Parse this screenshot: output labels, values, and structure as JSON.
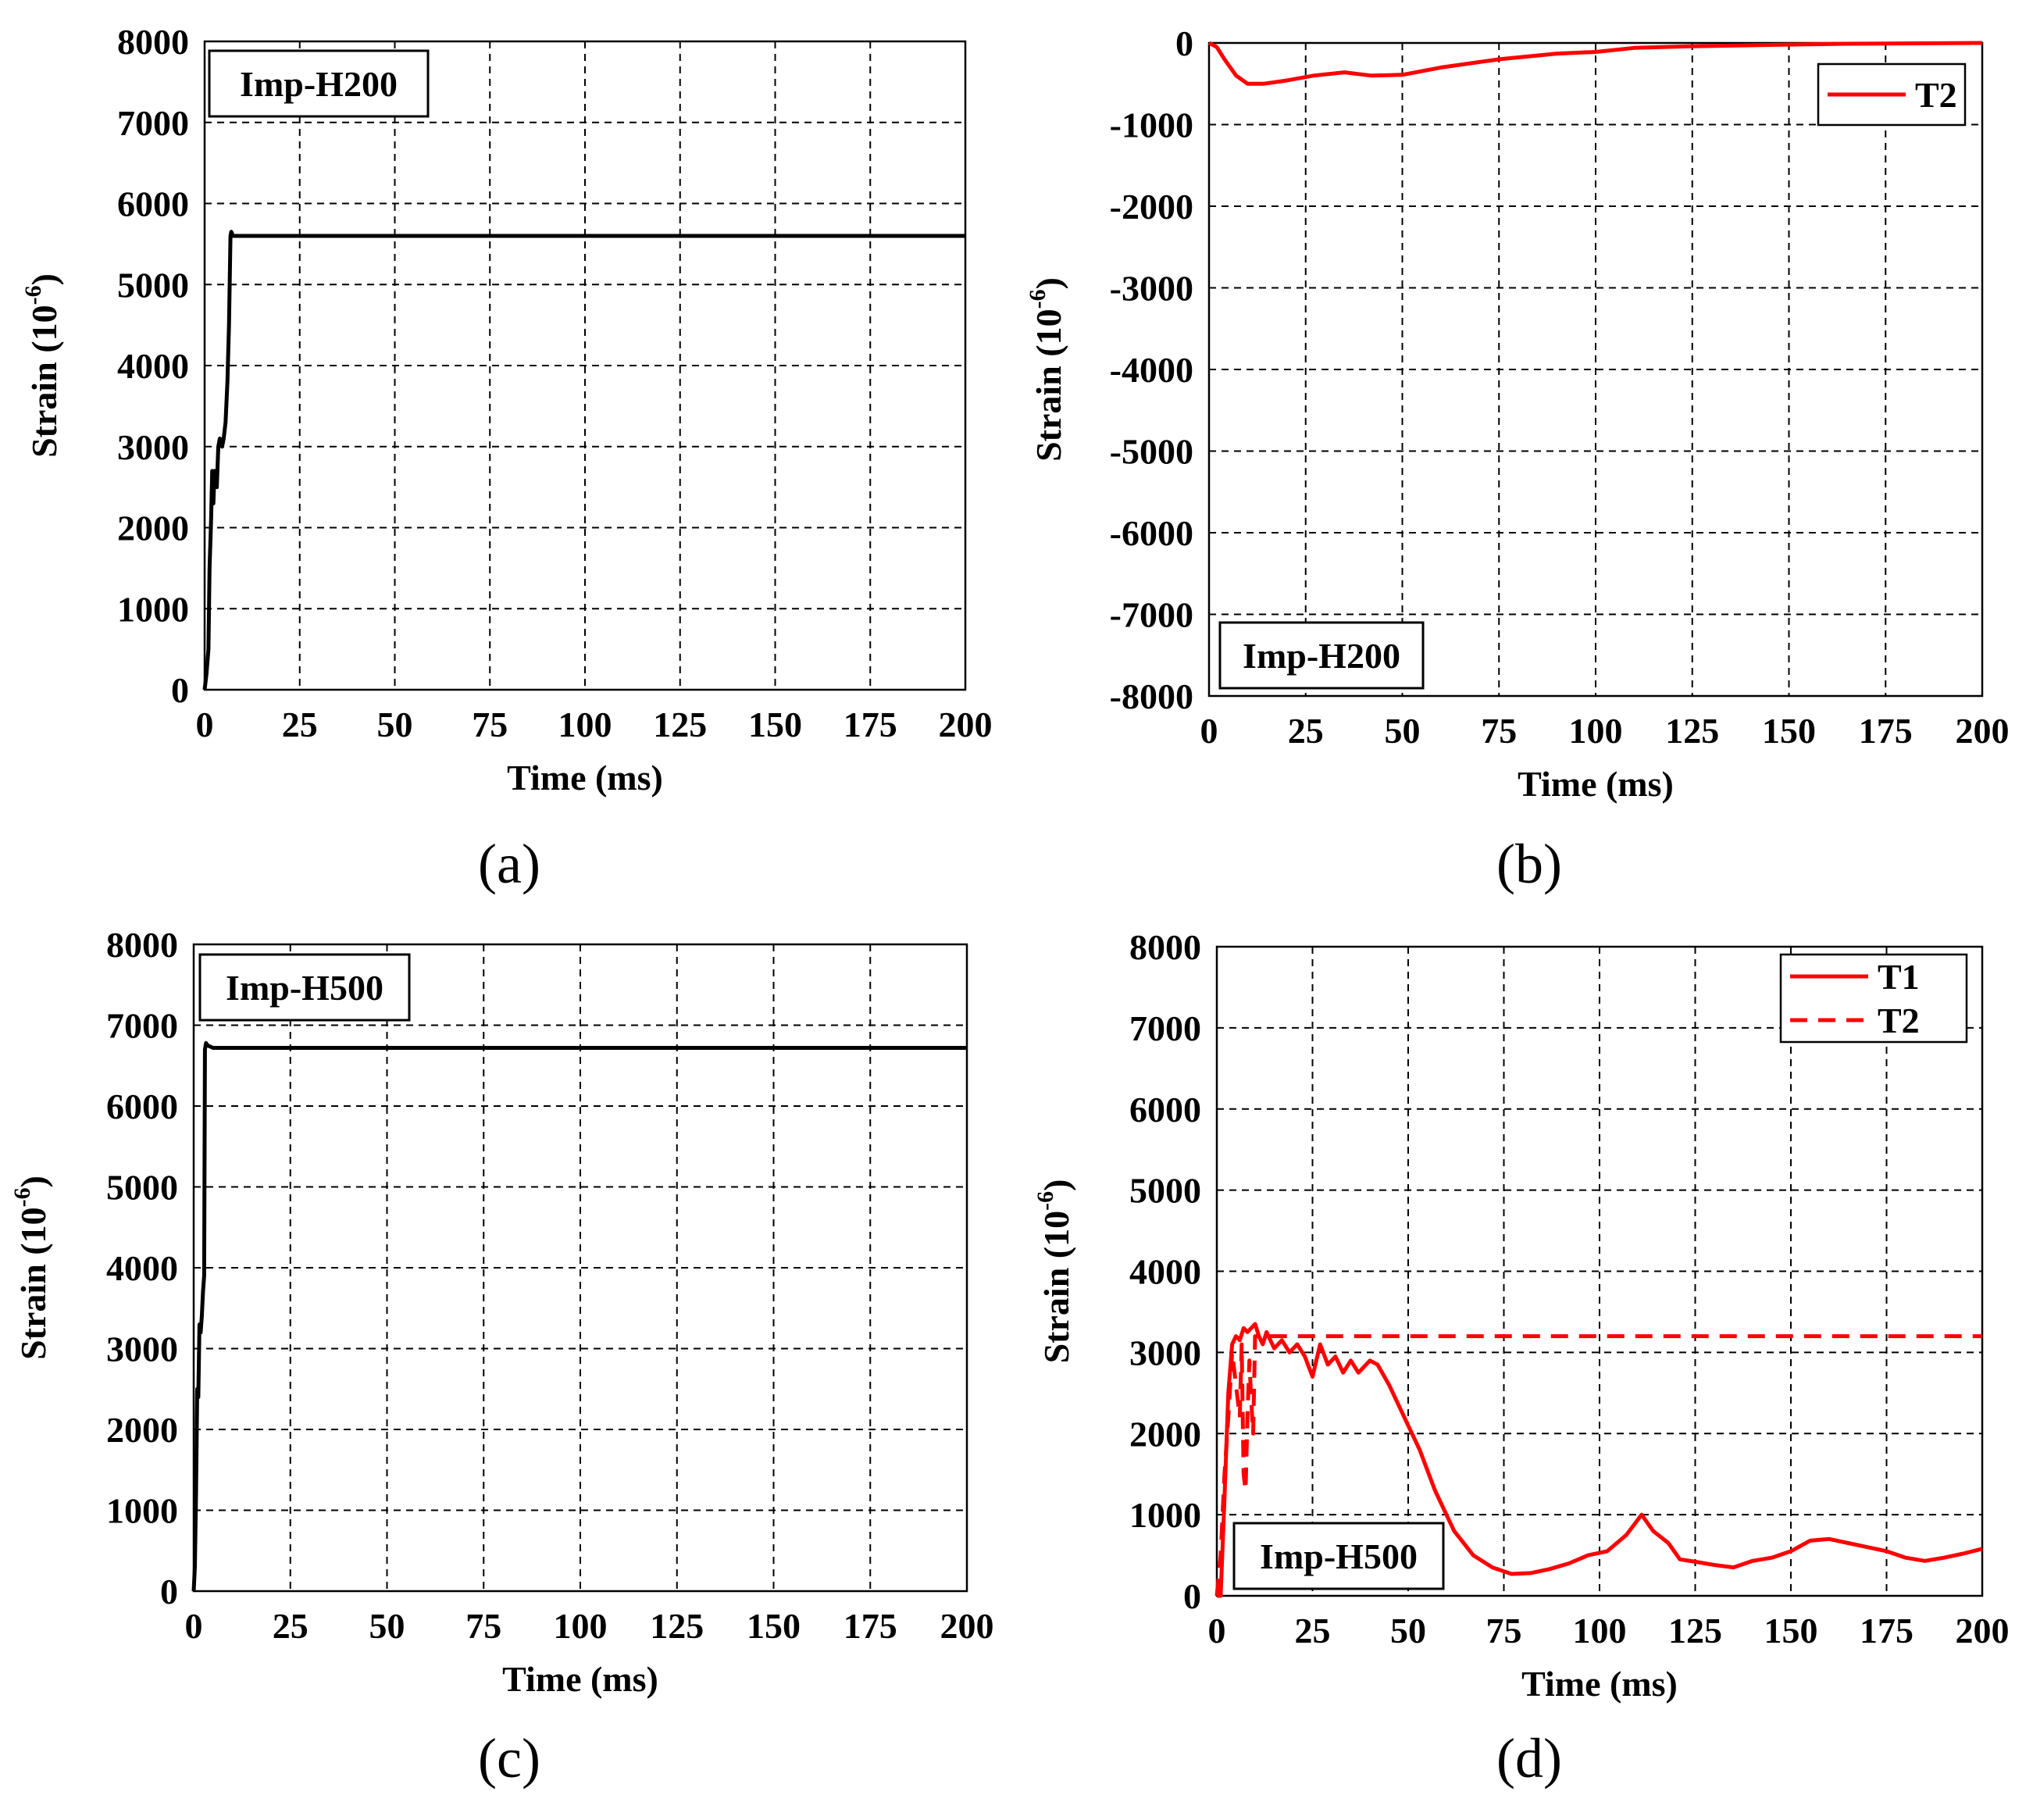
{
  "figure": {
    "chart_data": [
      {
        "id": "a",
        "type": "line",
        "panel_label": "(a)",
        "annotation": "Imp-H200",
        "xlabel": "Time (ms)",
        "ylabel_main": "Strain (10",
        "ylabel_exp": "-6",
        "ylabel_close": ")",
        "xlim": [
          0,
          200
        ],
        "ylim": [
          0,
          8000
        ],
        "xticks": [
          0,
          25,
          50,
          75,
          100,
          125,
          150,
          175,
          200
        ],
        "yticks": [
          0,
          1000,
          2000,
          3000,
          4000,
          5000,
          6000,
          7000,
          8000
        ],
        "legend": null,
        "series": [
          {
            "name": "",
            "color": "#000000",
            "dash": "solid",
            "points": [
              [
                0,
                0
              ],
              [
                0.5,
                200
              ],
              [
                1,
                500
              ],
              [
                1.3,
                1500
              ],
              [
                1.7,
                2100
              ],
              [
                2,
                2700
              ],
              [
                2.3,
                2300
              ],
              [
                2.6,
                2700
              ],
              [
                3.2,
                2500
              ],
              [
                3.6,
                3000
              ],
              [
                4,
                3100
              ],
              [
                4.6,
                3000
              ],
              [
                5,
                3100
              ],
              [
                5.5,
                3300
              ],
              [
                6,
                3800
              ],
              [
                6.4,
                4500
              ],
              [
                6.8,
                5600
              ],
              [
                7,
                5650
              ],
              [
                7.5,
                5600
              ],
              [
                200,
                5600
              ]
            ]
          }
        ]
      },
      {
        "id": "b",
        "type": "line",
        "panel_label": "(b)",
        "annotation": "Imp-H200",
        "xlabel": "Time (ms)",
        "ylabel_main": "Strain (10",
        "ylabel_exp": "-6",
        "ylabel_close": ")",
        "xlim": [
          0,
          200
        ],
        "ylim": [
          -8000,
          0
        ],
        "xticks": [
          0,
          25,
          50,
          75,
          100,
          125,
          150,
          175,
          200
        ],
        "yticks": [
          -8000,
          -7000,
          -6000,
          -5000,
          -4000,
          -3000,
          -2000,
          -1000,
          0
        ],
        "legend": {
          "position": "top-right"
        },
        "series": [
          {
            "name": "T2",
            "color": "#ff0000",
            "dash": "solid",
            "points": [
              [
                0,
                0
              ],
              [
                2,
                -50
              ],
              [
                4,
                -200
              ],
              [
                7,
                -400
              ],
              [
                10,
                -500
              ],
              [
                14,
                -500
              ],
              [
                20,
                -460
              ],
              [
                27,
                -400
              ],
              [
                35,
                -360
              ],
              [
                42,
                -400
              ],
              [
                50,
                -390
              ],
              [
                60,
                -300
              ],
              [
                75,
                -200
              ],
              [
                90,
                -130
              ],
              [
                100,
                -110
              ],
              [
                110,
                -60
              ],
              [
                125,
                -40
              ],
              [
                150,
                -20
              ],
              [
                165,
                -10
              ],
              [
                200,
                0
              ]
            ]
          }
        ]
      },
      {
        "id": "c",
        "type": "line",
        "panel_label": "(c)",
        "annotation": "Imp-H500",
        "xlabel": "Time (ms)",
        "ylabel_main": "Strain (10",
        "ylabel_exp": "-6",
        "ylabel_close": ")",
        "xlim": [
          0,
          200
        ],
        "ylim": [
          0,
          8000
        ],
        "xticks": [
          0,
          25,
          50,
          75,
          100,
          125,
          150,
          175,
          200
        ],
        "yticks": [
          0,
          1000,
          2000,
          3000,
          4000,
          5000,
          6000,
          7000,
          8000
        ],
        "legend": null,
        "series": [
          {
            "name": "",
            "color": "#000000",
            "dash": "solid",
            "points": [
              [
                0,
                0
              ],
              [
                0.3,
                300
              ],
              [
                0.6,
                1200
              ],
              [
                0.9,
                2500
              ],
              [
                1.2,
                2400
              ],
              [
                1.5,
                3300
              ],
              [
                1.8,
                3200
              ],
              [
                2.1,
                3400
              ],
              [
                2.4,
                3700
              ],
              [
                2.7,
                3900
              ],
              [
                2.9,
                6700
              ],
              [
                3.2,
                6780
              ],
              [
                3.6,
                6750
              ],
              [
                5,
                6720
              ],
              [
                200,
                6720
              ]
            ]
          }
        ]
      },
      {
        "id": "d",
        "type": "line",
        "panel_label": "(d)",
        "annotation": "Imp-H500",
        "xlabel": "Time (ms)",
        "ylabel_main": "Strain (10",
        "ylabel_exp": "-6",
        "ylabel_close": ")",
        "xlim": [
          0,
          200
        ],
        "ylim": [
          0,
          8000
        ],
        "xticks": [
          0,
          25,
          50,
          75,
          100,
          125,
          150,
          175,
          200
        ],
        "yticks": [
          0,
          1000,
          2000,
          3000,
          4000,
          5000,
          6000,
          7000,
          8000
        ],
        "legend": {
          "position": "top-right"
        },
        "series": [
          {
            "name": "T1",
            "color": "#ff0000",
            "dash": "solid",
            "points": [
              [
                0,
                0
              ],
              [
                1,
                0
              ],
              [
                2,
                1200
              ],
              [
                3,
                2500
              ],
              [
                4,
                3100
              ],
              [
                5,
                3200
              ],
              [
                6,
                3150
              ],
              [
                7,
                3300
              ],
              [
                8,
                3250
              ],
              [
                9,
                3300
              ],
              [
                10,
                3350
              ],
              [
                11,
                3200
              ],
              [
                12,
                3100
              ],
              [
                13,
                3250
              ],
              [
                15,
                3050
              ],
              [
                17,
                3150
              ],
              [
                19,
                3000
              ],
              [
                21,
                3100
              ],
              [
                23,
                2950
              ],
              [
                25,
                2700
              ],
              [
                27,
                3100
              ],
              [
                29,
                2850
              ],
              [
                31,
                2950
              ],
              [
                33,
                2750
              ],
              [
                35,
                2900
              ],
              [
                37,
                2750
              ],
              [
                40,
                2900
              ],
              [
                42,
                2850
              ],
              [
                45,
                2600
              ],
              [
                50,
                2100
              ],
              [
                53,
                1800
              ],
              [
                57,
                1300
              ],
              [
                62,
                800
              ],
              [
                67,
                500
              ],
              [
                72,
                350
              ],
              [
                77,
                270
              ],
              [
                82,
                280
              ],
              [
                87,
                330
              ],
              [
                92,
                400
              ],
              [
                97,
                500
              ],
              [
                102,
                550
              ],
              [
                107,
                750
              ],
              [
                111,
                1000
              ],
              [
                114,
                800
              ],
              [
                118,
                650
              ],
              [
                121,
                450
              ],
              [
                125,
                420
              ],
              [
                130,
                380
              ],
              [
                135,
                350
              ],
              [
                140,
                430
              ],
              [
                145,
                470
              ],
              [
                150,
                550
              ],
              [
                155,
                680
              ],
              [
                160,
                700
              ],
              [
                165,
                650
              ],
              [
                170,
                600
              ],
              [
                175,
                550
              ],
              [
                180,
                470
              ],
              [
                185,
                430
              ],
              [
                190,
                470
              ],
              [
                195,
                520
              ],
              [
                200,
                580
              ]
            ]
          },
          {
            "name": "T2",
            "color": "#ff0000",
            "dash": "dashed",
            "points": [
              [
                0,
                0
              ],
              [
                1,
                500
              ],
              [
                2,
                1500
              ],
              [
                3,
                2200
              ],
              [
                4,
                3000
              ],
              [
                5,
                2600
              ],
              [
                6,
                2200
              ],
              [
                6.5,
                3100
              ],
              [
                7,
                1500
              ],
              [
                7.5,
                1300
              ],
              [
                8,
                2200
              ],
              [
                8.5,
                2900
              ],
              [
                9,
                2400
              ],
              [
                9.5,
                2000
              ],
              [
                10,
                3200
              ],
              [
                12,
                3200
              ],
              [
                200,
                3200
              ]
            ]
          }
        ]
      }
    ]
  }
}
